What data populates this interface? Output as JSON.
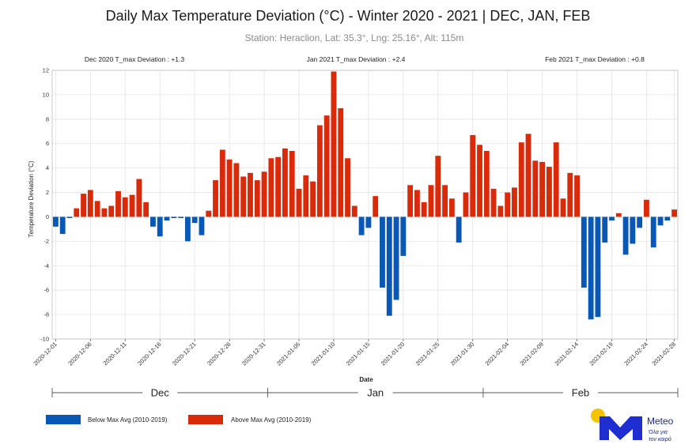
{
  "colors": {
    "below": "#0a58b5",
    "above": "#d92b0a",
    "logo_sun": "#f5c400",
    "logo_m": "#1f2ed1"
  },
  "logo": {
    "word": "Meteo",
    "tagline_line1": "Όλα για",
    "tagline_line2": "τον καιρό",
    "icon": "meteo-m-sun-logo"
  },
  "chart_data": {
    "type": "bar",
    "title": "Daily Max Temperature Deviation (°C) - Winter 2020 - 2021 | DEC, JAN, FEB",
    "subtitle": "Station: Heraclion, Lat: 35.3°, Lng: 25.16°, Alt: 115m",
    "xlabel": "Date",
    "ylabel": "Temperature Deviation (°C)",
    "ylim": [
      -10,
      12
    ],
    "yticks": [
      -10,
      -8,
      -6,
      -4,
      -2,
      0,
      2,
      4,
      6,
      8,
      10,
      12
    ],
    "grid": true,
    "x_tick_labels": [
      "2020-12-01",
      "2020-12-06",
      "2020-12-11",
      "2020-12-16",
      "2020-12-21",
      "2020-12-26",
      "2020-12-31",
      "2021-01-05",
      "2021-01-10",
      "2021-01-15",
      "2021-01-20",
      "2021-01-25",
      "2021-01-30",
      "2021-02-04",
      "2021-02-09",
      "2021-02-14",
      "2021-02-19",
      "2021-02-24",
      "2021-02-28"
    ],
    "annotations": [
      {
        "text": "Dec 2020 T_max Deviation : +1.3",
        "position": "top-left"
      },
      {
        "text": "Jan 2021 T_max Deviation : +2.4",
        "position": "top-center"
      },
      {
        "text": "Feb 2021 T_max Deviation : +0.8",
        "position": "top-right"
      }
    ],
    "months": [
      {
        "label": "Dec",
        "start_day": 0,
        "end_day": 31
      },
      {
        "label": "Jan",
        "start_day": 31,
        "end_day": 62
      },
      {
        "label": "Feb",
        "start_day": 62,
        "end_day": 90
      }
    ],
    "legend": [
      {
        "label": "Below Max Avg (2010-2019)",
        "color_key": "below"
      },
      {
        "label": "Above Max Avg (2010-2019)",
        "color_key": "above"
      }
    ],
    "legend_position": "bottom-left",
    "values": [
      -0.8,
      -1.4,
      -0.1,
      0.7,
      1.9,
      2.2,
      1.3,
      0.7,
      0.9,
      2.1,
      1.6,
      1.8,
      3.1,
      1.2,
      -0.8,
      -1.6,
      -0.3,
      -0.1,
      -0.1,
      -2.0,
      -0.5,
      -1.5,
      0.5,
      3.0,
      5.5,
      4.7,
      4.4,
      3.3,
      3.6,
      3.0,
      3.7,
      4.8,
      4.9,
      5.6,
      5.4,
      2.3,
      3.4,
      2.9,
      7.5,
      8.3,
      11.9,
      8.9,
      4.8,
      0.9,
      -1.5,
      -0.9,
      1.7,
      -5.8,
      -8.1,
      -6.8,
      -3.2,
      2.6,
      2.2,
      1.2,
      2.6,
      5.0,
      2.6,
      1.5,
      -2.1,
      2.0,
      6.7,
      5.9,
      5.4,
      2.3,
      0.9,
      2.0,
      2.4,
      6.1,
      6.8,
      4.6,
      4.5,
      4.1,
      6.1,
      1.5,
      3.6,
      3.4,
      -5.8,
      -8.4,
      -8.2,
      -2.1,
      -0.3,
      0.3,
      -3.1,
      -2.2,
      -0.9,
      1.4,
      -2.5,
      -0.7,
      -0.3,
      0.6
    ]
  }
}
